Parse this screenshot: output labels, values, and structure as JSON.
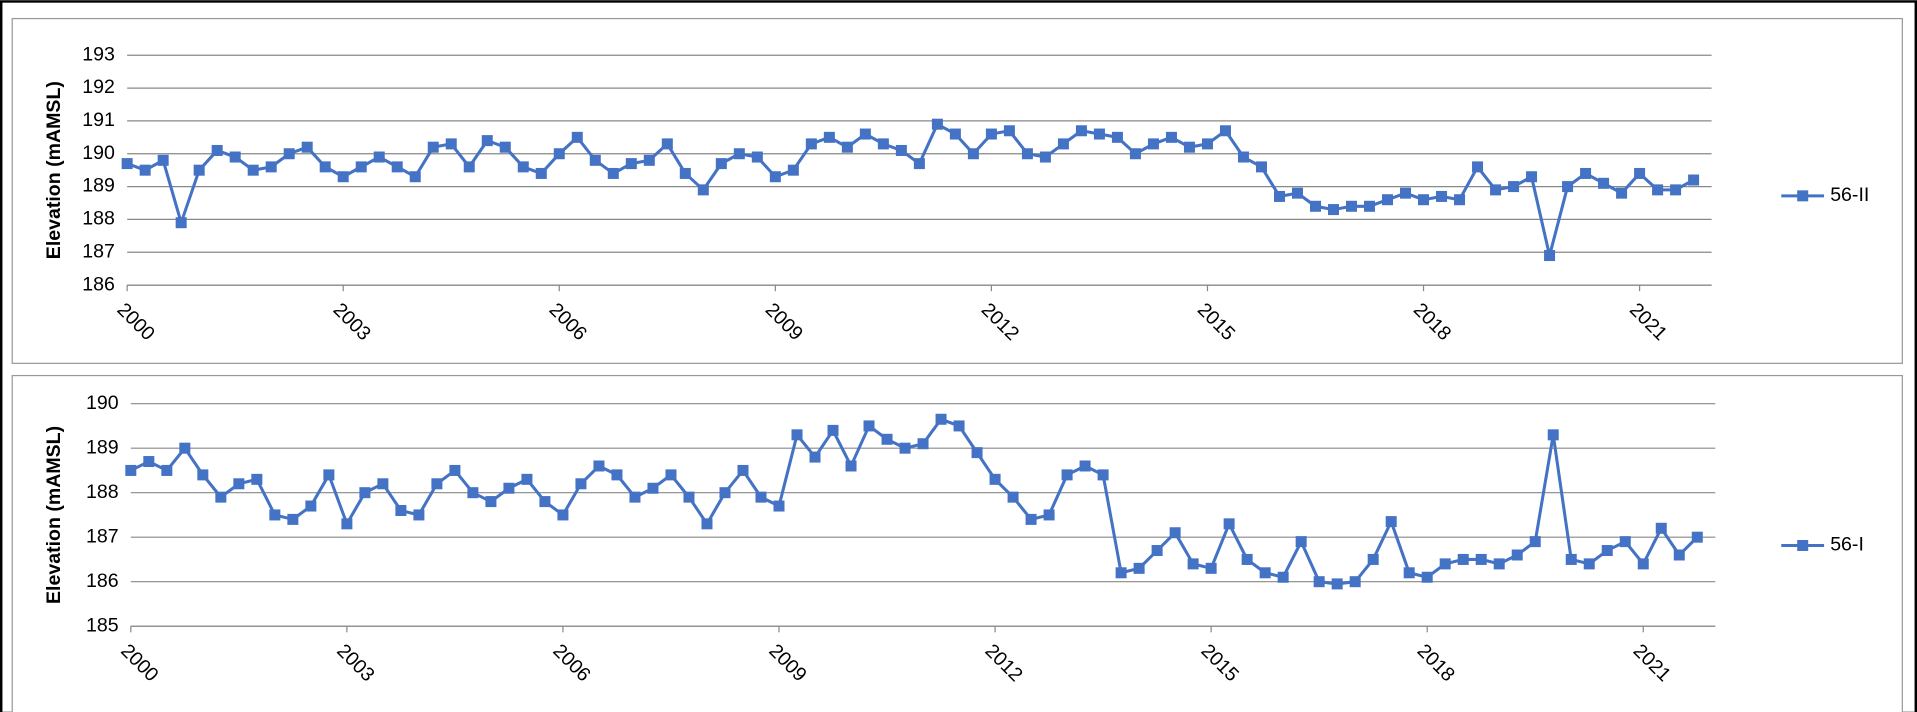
{
  "chart_data": [
    {
      "type": "line",
      "y_label": "Elevation (mAMSL)",
      "x": [
        2000,
        2000.25,
        2000.5,
        2000.75,
        2001,
        2001.25,
        2001.5,
        2001.75,
        2002,
        2002.25,
        2002.5,
        2002.75,
        2003,
        2003.25,
        2003.5,
        2003.75,
        2004,
        2004.25,
        2004.5,
        2004.75,
        2005,
        2005.25,
        2005.5,
        2005.75,
        2006,
        2006.25,
        2006.5,
        2006.75,
        2007,
        2007.25,
        2007.5,
        2007.75,
        2008,
        2008.25,
        2008.5,
        2008.75,
        2009,
        2009.25,
        2009.5,
        2009.75,
        2010,
        2010.25,
        2010.5,
        2010.75,
        2011,
        2011.25,
        2011.5,
        2011.75,
        2012,
        2012.25,
        2012.5,
        2012.75,
        2013,
        2013.25,
        2013.5,
        2013.75,
        2014,
        2014.25,
        2014.5,
        2014.75,
        2015,
        2015.25,
        2015.5,
        2015.75,
        2016,
        2016.25,
        2016.5,
        2016.75,
        2017,
        2017.25,
        2017.5,
        2017.75,
        2018,
        2018.25,
        2018.5,
        2018.75,
        2019,
        2019.25,
        2019.5,
        2019.75,
        2020,
        2020.25,
        2020.5,
        2020.75,
        2021,
        2021.25,
        2021.5,
        2021.75
      ],
      "series": [
        {
          "name": "56-II",
          "color": "#4472c4",
          "values": [
            189.7,
            189.5,
            189.8,
            187.9,
            189.5,
            190.1,
            189.9,
            189.5,
            189.6,
            190.0,
            190.2,
            189.6,
            189.3,
            189.6,
            189.9,
            189.6,
            189.3,
            190.2,
            190.3,
            189.6,
            190.4,
            190.2,
            189.6,
            189.4,
            190.0,
            190.5,
            189.8,
            189.4,
            189.7,
            189.8,
            190.3,
            189.4,
            188.9,
            189.7,
            190.0,
            189.9,
            189.3,
            189.5,
            190.3,
            190.5,
            190.2,
            190.6,
            190.3,
            190.1,
            189.7,
            190.9,
            190.6,
            190.0,
            190.6,
            190.7,
            190.0,
            189.9,
            190.3,
            190.7,
            190.6,
            190.5,
            190.0,
            190.3,
            190.5,
            190.2,
            190.3,
            190.7,
            189.9,
            189.6,
            188.7,
            188.8,
            188.4,
            188.3,
            188.4,
            188.4,
            188.6,
            188.8,
            188.6,
            188.7,
            188.6,
            189.6,
            188.9,
            189.0,
            189.3,
            186.9,
            189.0,
            189.4,
            189.1,
            188.8,
            189.4,
            188.9,
            188.9,
            189.2
          ]
        }
      ],
      "xlim": [
        2000,
        2022
      ],
      "xticks": [
        2000,
        2003,
        2006,
        2009,
        2012,
        2015,
        2018,
        2021
      ],
      "ylim": [
        186,
        193
      ],
      "yticks": [
        186,
        187,
        188,
        189,
        190,
        191,
        192,
        193
      ],
      "grid": true,
      "legend": "right"
    },
    {
      "type": "line",
      "y_label": "Elevation (mAMSL)",
      "x": [
        2000,
        2000.25,
        2000.5,
        2000.75,
        2001,
        2001.25,
        2001.5,
        2001.75,
        2002,
        2002.25,
        2002.5,
        2002.75,
        2003,
        2003.25,
        2003.5,
        2003.75,
        2004,
        2004.25,
        2004.5,
        2004.75,
        2005,
        2005.25,
        2005.5,
        2005.75,
        2006,
        2006.25,
        2006.5,
        2006.75,
        2007,
        2007.25,
        2007.5,
        2007.75,
        2008,
        2008.25,
        2008.5,
        2008.75,
        2009,
        2009.25,
        2009.5,
        2009.75,
        2010,
        2010.25,
        2010.5,
        2010.75,
        2011,
        2011.25,
        2011.5,
        2011.75,
        2012,
        2012.25,
        2012.5,
        2012.75,
        2013,
        2013.25,
        2013.5,
        2013.75,
        2014,
        2014.25,
        2014.5,
        2014.75,
        2015,
        2015.25,
        2015.5,
        2015.75,
        2016,
        2016.25,
        2016.5,
        2016.75,
        2017,
        2017.25,
        2017.5,
        2017.75,
        2018,
        2018.25,
        2018.5,
        2018.75,
        2019,
        2019.25,
        2019.5,
        2019.75,
        2020,
        2020.25,
        2020.5,
        2020.75,
        2021,
        2021.25,
        2021.5,
        2021.75
      ],
      "series": [
        {
          "name": "56-I",
          "color": "#4472c4",
          "values": [
            188.5,
            188.7,
            188.5,
            189.0,
            188.4,
            187.9,
            188.2,
            188.3,
            187.5,
            187.4,
            187.7,
            188.4,
            187.3,
            188.0,
            188.2,
            187.6,
            187.5,
            188.2,
            188.5,
            188.0,
            187.8,
            188.1,
            188.3,
            187.8,
            187.5,
            188.2,
            188.6,
            188.4,
            187.9,
            188.1,
            188.4,
            187.9,
            187.3,
            188.0,
            188.5,
            187.9,
            187.7,
            189.3,
            188.8,
            189.4,
            188.6,
            189.5,
            189.2,
            189.0,
            189.1,
            189.65,
            189.5,
            188.9,
            188.3,
            187.9,
            187.4,
            187.5,
            188.4,
            188.6,
            188.4,
            186.2,
            186.3,
            186.7,
            187.1,
            186.4,
            186.3,
            187.3,
            186.5,
            186.2,
            186.1,
            186.9,
            186.0,
            185.95,
            186.0,
            186.5,
            187.35,
            186.2,
            186.1,
            186.4,
            186.5,
            186.5,
            186.4,
            186.6,
            186.9,
            189.3,
            186.5,
            186.4,
            186.7,
            186.9,
            186.4,
            187.2,
            186.6,
            187.0
          ]
        }
      ],
      "xlim": [
        2000,
        2022
      ],
      "xticks": [
        2000,
        2003,
        2006,
        2009,
        2012,
        2015,
        2018,
        2021
      ],
      "ylim": [
        185,
        190
      ],
      "yticks": [
        185,
        186,
        187,
        188,
        189,
        190
      ],
      "grid": true,
      "legend": "right"
    }
  ]
}
